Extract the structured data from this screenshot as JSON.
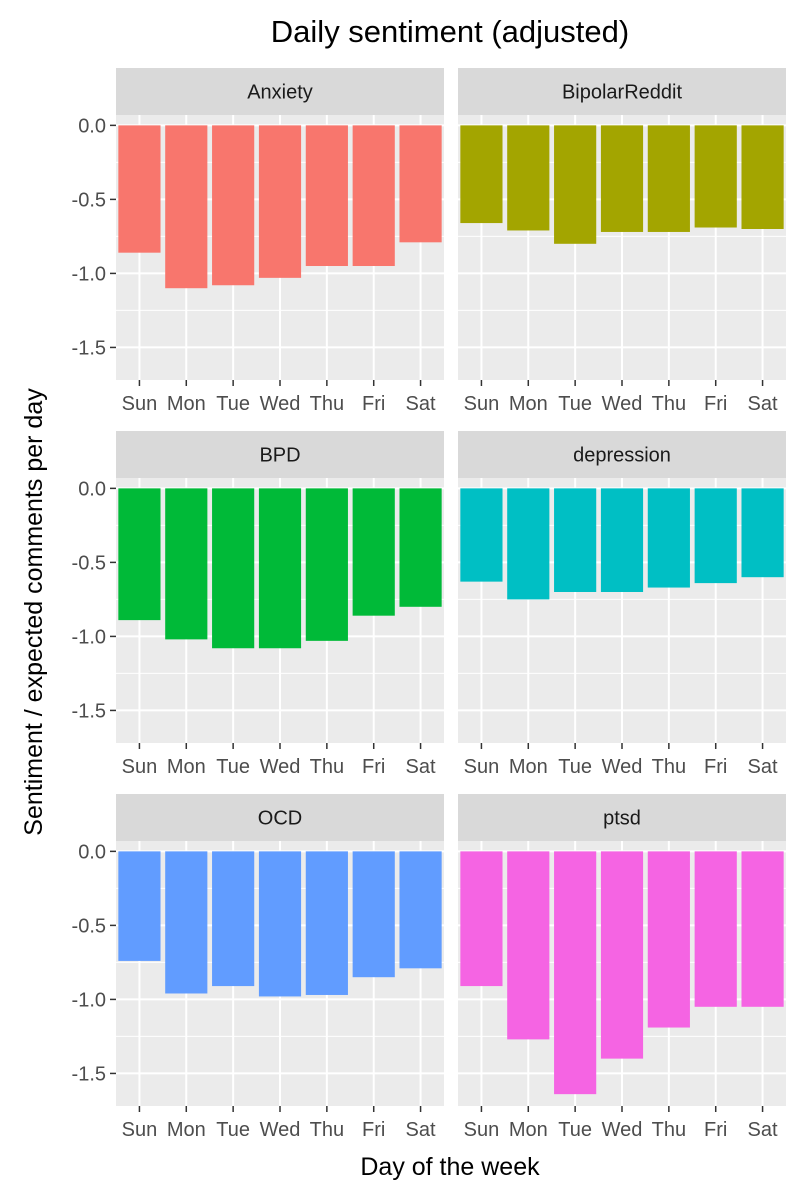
{
  "chart_data": {
    "type": "bar",
    "title": "Daily sentiment (adjusted)",
    "xlabel": "Day of the week",
    "ylabel": "Sentiment / expected comments per day",
    "categories": [
      "Sun",
      "Mon",
      "Tue",
      "Wed",
      "Thu",
      "Fri",
      "Sat"
    ],
    "ylim": [
      -1.72,
      0.07
    ],
    "yticks": [
      0.0,
      -0.5,
      -1.0,
      -1.5
    ],
    "ytick_labels": [
      "0.0",
      "-0.5",
      "-1.0",
      "-1.5"
    ],
    "grid": true,
    "legend": "none",
    "panels": [
      {
        "name": "Anxiety",
        "color": "#F8766D",
        "values": [
          -0.86,
          -1.1,
          -1.08,
          -1.03,
          -0.95,
          -0.95,
          -0.79
        ]
      },
      {
        "name": "BipolarReddit",
        "color": "#A3A500",
        "values": [
          -0.66,
          -0.71,
          -0.8,
          -0.72,
          -0.72,
          -0.69,
          -0.7
        ]
      },
      {
        "name": "BPD",
        "color": "#00BA38",
        "values": [
          -0.89,
          -1.02,
          -1.08,
          -1.08,
          -1.03,
          -0.86,
          -0.8
        ]
      },
      {
        "name": "depression",
        "color": "#00BFC4",
        "values": [
          -0.63,
          -0.75,
          -0.7,
          -0.7,
          -0.67,
          -0.64,
          -0.6
        ]
      },
      {
        "name": "OCD",
        "color": "#619CFF",
        "values": [
          -0.74,
          -0.96,
          -0.91,
          -0.98,
          -0.97,
          -0.85,
          -0.79
        ]
      },
      {
        "name": "ptsd",
        "color": "#F564E3",
        "values": [
          -0.91,
          -1.27,
          -1.64,
          -1.4,
          -1.19,
          -1.05,
          -1.05
        ]
      }
    ]
  }
}
